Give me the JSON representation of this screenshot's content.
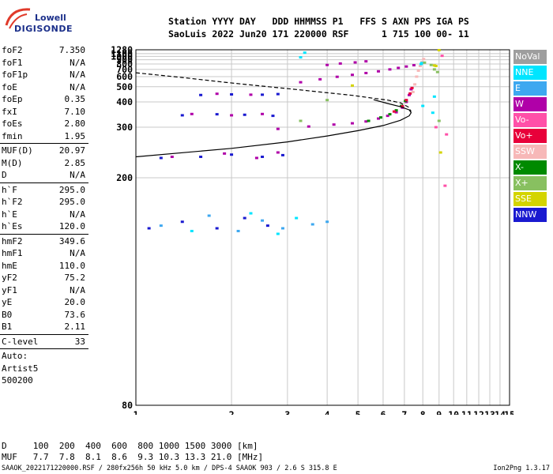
{
  "logo": {
    "top": "Lowell",
    "bottom": "DIGISONDE"
  },
  "header": {
    "line1": "Station YYYY DAY   DDD HHMMSS P1   FFS S AXN PPS IGA PS",
    "line2": "SaoLuis 2022 Jun20 171 220000 RSF      1 715 100 00- 11"
  },
  "params": [
    [
      {
        "label": "foF2",
        "value": "7.350"
      },
      {
        "label": "foF1",
        "value": "N/A"
      },
      {
        "label": "foF1p",
        "value": "N/A"
      },
      {
        "label": "foE",
        "value": "N/A"
      },
      {
        "label": "foEp",
        "value": "0.35"
      },
      {
        "label": "fxI",
        "value": "7.10"
      },
      {
        "label": "foEs",
        "value": "2.80"
      },
      {
        "label": "fmin",
        "value": "1.95"
      }
    ],
    [
      {
        "label": "MUF(D)",
        "value": "20.97"
      },
      {
        "label": "M(D)",
        "value": "2.85"
      },
      {
        "label": "D",
        "value": "N/A"
      }
    ],
    [
      {
        "label": "h`F",
        "value": "295.0"
      },
      {
        "label": "h`F2",
        "value": "295.0"
      },
      {
        "label": "h`E",
        "value": "N/A"
      },
      {
        "label": "h`Es",
        "value": "120.0"
      }
    ],
    [
      {
        "label": "hmF2",
        "value": "349.6"
      },
      {
        "label": "hmF1",
        "value": "N/A"
      },
      {
        "label": "hmE",
        "value": "110.0"
      },
      {
        "label": "yF2",
        "value": "75.2"
      },
      {
        "label": "yF1",
        "value": "N/A"
      },
      {
        "label": "yE",
        "value": "20.0"
      },
      {
        "label": "B0",
        "value": "73.6"
      },
      {
        "label": "B1",
        "value": "2.11"
      }
    ],
    [
      {
        "label": "C-level",
        "value": "33"
      }
    ]
  ],
  "auto": {
    "line1": "Auto:",
    "line2": "Artist5",
    "line3": "500200"
  },
  "legend": [
    {
      "label": "NoVal",
      "color": "#9e9e9e"
    },
    {
      "label": "NNE",
      "color": "#00e5ff"
    },
    {
      "label": "E",
      "color": "#3ea8f0"
    },
    {
      "label": "W",
      "color": "#b000a8"
    },
    {
      "label": "Vo-",
      "color": "#ff50a8"
    },
    {
      "label": "Vo+",
      "color": "#e8003a"
    },
    {
      "label": "SSW",
      "color": "#f7b8b8"
    },
    {
      "label": "X-",
      "color": "#008a00"
    },
    {
      "label": "X+",
      "color": "#88c060"
    },
    {
      "label": "SSE",
      "color": "#d4d400"
    },
    {
      "label": "NNW",
      "color": "#1a1ad0"
    }
  ],
  "dm_table": {
    "d_label": "D",
    "d_values": "100  200  400  600  800 1000 1500 3000 [km]",
    "muf_label": "MUF",
    "muf_values": "7.7  7.8  8.1  8.6  9.3 10.3 13.3 21.0 [MHz]"
  },
  "footer": {
    "left": "SAAOK_2022171220000.RSF / 280fx256h 50 kHz 5.0 km / DPS-4 SAAOK 903 / 2.6 S 315.8 E",
    "right": "Ion2Png 1.3.17"
  },
  "chart_data": {
    "type": "scatter",
    "x_scale": "log",
    "y_scale": "reciprocal",
    "xlim": [
      1,
      15
    ],
    "ylim": [
      80,
      1280
    ],
    "x_ticks": [
      1,
      2,
      3,
      4,
      5,
      6,
      7,
      8,
      9,
      10,
      11,
      12,
      13,
      14,
      15
    ],
    "y_ticks": [
      80,
      200,
      300,
      400,
      500,
      600,
      700,
      800,
      900,
      1000,
      1100,
      1280
    ],
    "grid": true,
    "legend_position": "right",
    "series": [
      {
        "color": "#b000a8",
        "points": [
          [
            2.8,
            295
          ],
          [
            3.5,
            302
          ],
          [
            4.2,
            308
          ],
          [
            4.8,
            312
          ],
          [
            5.3,
            318
          ],
          [
            5.8,
            328
          ],
          [
            6.2,
            338
          ],
          [
            6.6,
            352
          ],
          [
            6.9,
            372
          ],
          [
            7.1,
            400
          ],
          [
            7.25,
            440
          ],
          [
            7.35,
            480
          ]
        ]
      },
      {
        "color": "#008a00",
        "points": [
          [
            5.4,
            320
          ],
          [
            5.9,
            332
          ],
          [
            6.3,
            344
          ],
          [
            6.6,
            360
          ],
          [
            6.85,
            380
          ],
          [
            7.05,
            405
          ]
        ]
      },
      {
        "color": "#e8003a",
        "points": [
          [
            6.5,
            355
          ],
          [
            6.9,
            378
          ],
          [
            7.1,
            410
          ],
          [
            7.3,
            450
          ],
          [
            7.4,
            490
          ]
        ]
      },
      {
        "color": "#f7b8b8",
        "points": [
          [
            7.45,
            460
          ],
          [
            7.55,
            520
          ],
          [
            7.65,
            600
          ],
          [
            7.75,
            680
          ],
          [
            7.85,
            760
          ],
          [
            7.95,
            840
          ],
          [
            8.05,
            920
          ]
        ]
      },
      {
        "color": "#b000a8",
        "points": [
          [
            3.3,
            540
          ],
          [
            3.8,
            570
          ],
          [
            4.3,
            598
          ],
          [
            4.8,
            622
          ],
          [
            5.3,
            646
          ],
          [
            5.8,
            670
          ],
          [
            6.3,
            700
          ],
          [
            6.7,
            725
          ],
          [
            7.1,
            750
          ],
          [
            7.5,
            775
          ]
        ]
      },
      {
        "color": "#b000a8",
        "points": [
          [
            4.0,
            780
          ],
          [
            4.4,
            810
          ],
          [
            4.9,
            835
          ],
          [
            5.3,
            860
          ]
        ]
      },
      {
        "color": "#1a1ad0",
        "points": [
          [
            1.1,
            150
          ],
          [
            1.4,
            155
          ],
          [
            1.8,
            150
          ],
          [
            2.2,
            158
          ],
          [
            2.6,
            152
          ],
          [
            1.2,
            230
          ],
          [
            1.6,
            232
          ],
          [
            2.0,
            236
          ],
          [
            2.5,
            232
          ],
          [
            2.9,
            235
          ],
          [
            1.4,
            340
          ],
          [
            1.8,
            344
          ],
          [
            2.2,
            342
          ],
          [
            2.7,
            338
          ],
          [
            1.6,
            440
          ],
          [
            2.0,
            444
          ],
          [
            2.5,
            442
          ],
          [
            2.8,
            446
          ]
        ]
      },
      {
        "color": "#b000a8",
        "points": [
          [
            1.3,
            232
          ],
          [
            1.9,
            238
          ],
          [
            2.4,
            230
          ],
          [
            2.8,
            240
          ],
          [
            1.5,
            345
          ],
          [
            2.0,
            340
          ],
          [
            2.5,
            345
          ],
          [
            1.8,
            448
          ],
          [
            2.3,
            442
          ]
        ]
      },
      {
        "color": "#3ea8f0",
        "points": [
          [
            1.2,
            152
          ],
          [
            1.7,
            160
          ],
          [
            2.1,
            148
          ],
          [
            2.5,
            156
          ],
          [
            2.9,
            150
          ],
          [
            3.6,
            153
          ],
          [
            4.0,
            155
          ]
        ]
      },
      {
        "color": "#00e5ff",
        "points": [
          [
            1.5,
            148
          ],
          [
            2.3,
            162
          ],
          [
            2.8,
            146
          ],
          [
            3.2,
            158
          ],
          [
            7.9,
            800
          ],
          [
            7.95,
            820
          ],
          [
            8.0,
            380
          ],
          [
            8.6,
            350
          ],
          [
            8.7,
            430
          ],
          [
            3.4,
            1140
          ],
          [
            3.3,
            970
          ]
        ]
      },
      {
        "color": "#88c060",
        "points": [
          [
            8.1,
            830
          ],
          [
            8.5,
            780
          ],
          [
            8.7,
            700
          ],
          [
            8.9,
            660
          ],
          [
            9.0,
            320
          ],
          [
            3.3,
            320
          ],
          [
            4.0,
            410
          ]
        ]
      },
      {
        "color": "#d4d400",
        "points": [
          [
            8.7,
            770
          ],
          [
            9.0,
            1260
          ],
          [
            8.8,
            760
          ],
          [
            4.8,
            510
          ],
          [
            9.1,
            240
          ]
        ]
      },
      {
        "color": "#ff50a8",
        "points": [
          [
            9.2,
            1020
          ],
          [
            9.5,
            280
          ],
          [
            9.4,
            190
          ],
          [
            8.8,
            300
          ]
        ]
      }
    ],
    "curves": [
      {
        "style": "solid",
        "color": "#000000",
        "points": [
          [
            1.0,
            232
          ],
          [
            2.0,
            248
          ],
          [
            3.0,
            262
          ],
          [
            4.0,
            276
          ],
          [
            5.0,
            290
          ],
          [
            6.0,
            305
          ],
          [
            6.8,
            322
          ],
          [
            7.25,
            338
          ],
          [
            7.35,
            350
          ],
          [
            7.25,
            362
          ],
          [
            6.8,
            376
          ],
          [
            6.2,
            392
          ],
          [
            5.6,
            412
          ]
        ]
      },
      {
        "style": "dashed",
        "color": "#000000",
        "points": [
          [
            1.0,
            650
          ],
          [
            1.4,
            590
          ],
          [
            1.9,
            540
          ],
          [
            2.5,
            505
          ],
          [
            3.2,
            478
          ],
          [
            4.0,
            455
          ],
          [
            4.8,
            438
          ],
          [
            5.6,
            420
          ],
          [
            6.2,
            410
          ],
          [
            6.8,
            395
          ],
          [
            7.2,
            375
          ],
          [
            7.35,
            355
          ]
        ]
      }
    ]
  }
}
